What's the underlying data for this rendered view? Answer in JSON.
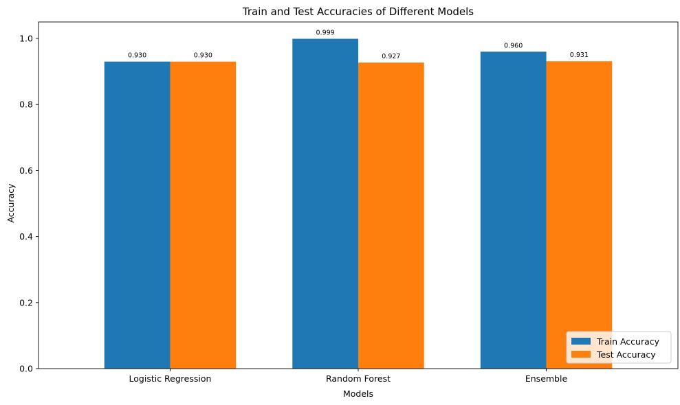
{
  "chart_data": {
    "type": "bar",
    "title": "Train and Test Accuracies of Different Models",
    "xlabel": "Models",
    "ylabel": "Accuracy",
    "categories": [
      "Logistic Regression",
      "Random Forest",
      "Ensemble"
    ],
    "series": [
      {
        "name": "Train Accuracy",
        "values": [
          0.93,
          0.999,
          0.96
        ],
        "labels": [
          "0.930",
          "0.999",
          "0.960"
        ],
        "color": "#1f77b4"
      },
      {
        "name": "Test Accuracy",
        "values": [
          0.93,
          0.927,
          0.931
        ],
        "labels": [
          "0.930",
          "0.927",
          "0.931"
        ],
        "color": "#ff7f0e"
      }
    ],
    "ylim": [
      0,
      1.05
    ],
    "yticks": [
      0.0,
      0.2,
      0.4,
      0.6,
      0.8,
      1.0
    ],
    "ytick_labels": [
      "0.0",
      "0.2",
      "0.4",
      "0.6",
      "0.8",
      "1.0"
    ],
    "grid": false,
    "legend_position": "bottom-right"
  }
}
